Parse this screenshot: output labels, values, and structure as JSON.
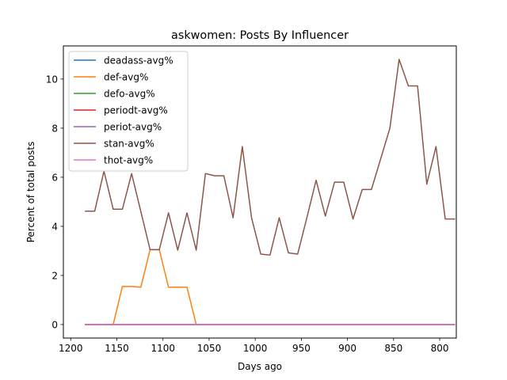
{
  "chart_data": {
    "type": "line",
    "title": "askwomen: Posts By Influencer",
    "xlabel": "Days ago",
    "ylabel": "Percent of total posts",
    "xlim": [
      1208,
      782
    ],
    "ylim": [
      -0.55,
      11.35
    ],
    "x_ticks": [
      1200,
      1150,
      1100,
      1050,
      1000,
      950,
      900,
      850,
      800
    ],
    "y_ticks": [
      0,
      2,
      4,
      6,
      8,
      10
    ],
    "grid": false,
    "legend_position": "top-left",
    "x": [
      1184,
      1174,
      1164,
      1154,
      1144,
      1134,
      1124,
      1114,
      1104,
      1094,
      1084,
      1074,
      1064,
      1054,
      1044,
      1034,
      1024,
      1014,
      1004,
      994,
      984,
      974,
      964,
      954,
      944,
      934,
      924,
      914,
      904,
      894,
      884,
      874,
      864,
      854,
      844,
      834,
      824,
      814,
      804,
      794,
      784
    ],
    "series": [
      {
        "name": "deadass-avg%",
        "color": "#1f77b4",
        "values": [
          0,
          0,
          0,
          0,
          0,
          0,
          0,
          0,
          0,
          0,
          0,
          0,
          0,
          0,
          0,
          0,
          0,
          0,
          0,
          0,
          0,
          0,
          0,
          0,
          0,
          0,
          0,
          0,
          0,
          0,
          0,
          0,
          0,
          0,
          0,
          0,
          0,
          0,
          0,
          0,
          0
        ]
      },
      {
        "name": "def-avg%",
        "color": "#ff7f0e",
        "values": [
          0,
          0,
          0,
          0,
          1.55,
          1.55,
          1.52,
          3.05,
          3.05,
          1.52,
          1.52,
          1.52,
          0,
          0,
          0,
          0,
          0,
          0,
          0,
          0,
          0,
          0,
          0,
          0,
          0,
          0,
          0,
          0,
          0,
          0,
          0,
          0,
          0,
          0,
          0,
          0,
          0,
          0,
          0,
          0,
          0
        ]
      },
      {
        "name": "defo-avg%",
        "color": "#2ca02c",
        "values": [
          0,
          0,
          0,
          0,
          0,
          0,
          0,
          0,
          0,
          0,
          0,
          0,
          0,
          0,
          0,
          0,
          0,
          0,
          0,
          0,
          0,
          0,
          0,
          0,
          0,
          0,
          0,
          0,
          0,
          0,
          0,
          0,
          0,
          0,
          0,
          0,
          0,
          0,
          0,
          0,
          0
        ]
      },
      {
        "name": "periodt-avg%",
        "color": "#d62728",
        "values": [
          0,
          0,
          0,
          0,
          0,
          0,
          0,
          0,
          0,
          0,
          0,
          0,
          0,
          0,
          0,
          0,
          0,
          0,
          0,
          0,
          0,
          0,
          0,
          0,
          0,
          0,
          0,
          0,
          0,
          0,
          0,
          0,
          0,
          0,
          0,
          0,
          0,
          0,
          0,
          0,
          0
        ]
      },
      {
        "name": "periot-avg%",
        "color": "#9467bd",
        "values": [
          0,
          0,
          0,
          0,
          0,
          0,
          0,
          0,
          0,
          0,
          0,
          0,
          0,
          0,
          0,
          0,
          0,
          0,
          0,
          0,
          0,
          0,
          0,
          0,
          0,
          0,
          0,
          0,
          0,
          0,
          0,
          0,
          0,
          0,
          0,
          0,
          0,
          0,
          0,
          0,
          0
        ]
      },
      {
        "name": "stan-avg%",
        "color": "#8c564b",
        "values": [
          4.62,
          4.62,
          6.25,
          4.7,
          4.7,
          6.15,
          4.6,
          3.05,
          3.05,
          4.55,
          3.03,
          4.55,
          3.03,
          6.15,
          6.06,
          6.06,
          4.35,
          7.25,
          4.35,
          2.87,
          2.83,
          4.35,
          2.92,
          2.87,
          4.35,
          5.88,
          4.42,
          5.8,
          5.8,
          4.3,
          5.5,
          5.5,
          6.75,
          8.0,
          10.8,
          9.72,
          9.72,
          5.72,
          7.25,
          4.3,
          4.3
        ]
      },
      {
        "name": "thot-avg%",
        "color": "#e377c2",
        "values": [
          0,
          0,
          0,
          0,
          0,
          0,
          0,
          0,
          0,
          0,
          0,
          0,
          0,
          0,
          0,
          0,
          0,
          0,
          0,
          0,
          0,
          0,
          0,
          0,
          0,
          0,
          0,
          0,
          0,
          0,
          0,
          0,
          0,
          0,
          0,
          0,
          0,
          0,
          0,
          0,
          0
        ]
      }
    ]
  }
}
